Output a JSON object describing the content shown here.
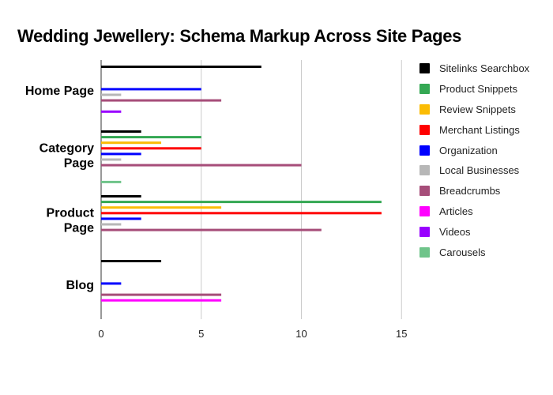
{
  "chart_data": {
    "type": "bar",
    "orientation": "horizontal",
    "title": "Wedding Jewellery: Schema Markup Across Site Pages",
    "xlabel": "",
    "ylabel": "",
    "xlim": [
      0,
      15
    ],
    "xticks": [
      0,
      5,
      10,
      15
    ],
    "grid": true,
    "legend_position": "right",
    "categories": [
      "Home Page",
      "Category Page",
      "Product Page",
      "Blog"
    ],
    "series": [
      {
        "name": "Sitelinks Searchbox",
        "color": "#000000",
        "values": [
          8,
          2,
          2,
          3
        ]
      },
      {
        "name": "Product Snippets",
        "color": "#34a853",
        "values": [
          0,
          5,
          14,
          0
        ]
      },
      {
        "name": "Review Snippets",
        "color": "#fbbc04",
        "values": [
          0,
          3,
          6,
          0
        ]
      },
      {
        "name": "Merchant Listings",
        "color": "#ff0000",
        "values": [
          0,
          5,
          14,
          0
        ]
      },
      {
        "name": "Organization",
        "color": "#0000ff",
        "values": [
          5,
          2,
          2,
          1
        ]
      },
      {
        "name": "Local Businesses",
        "color": "#b7b7b7",
        "values": [
          1,
          1,
          1,
          0
        ]
      },
      {
        "name": "Breadcrumbs",
        "color": "#a64d79",
        "values": [
          6,
          10,
          11,
          6
        ]
      },
      {
        "name": "Articles",
        "color": "#ff00ff",
        "values": [
          0,
          0,
          0,
          6
        ]
      },
      {
        "name": "Videos",
        "color": "#9900ff",
        "values": [
          1,
          0,
          0,
          0
        ]
      },
      {
        "name": "Carousels",
        "color": "#6fc48a",
        "values": [
          0,
          1,
          0,
          0
        ]
      }
    ]
  },
  "category_labels": [
    [
      "Home Page"
    ],
    [
      "Category",
      "Page"
    ],
    [
      "Product",
      "Page"
    ],
    [
      "Blog"
    ]
  ]
}
